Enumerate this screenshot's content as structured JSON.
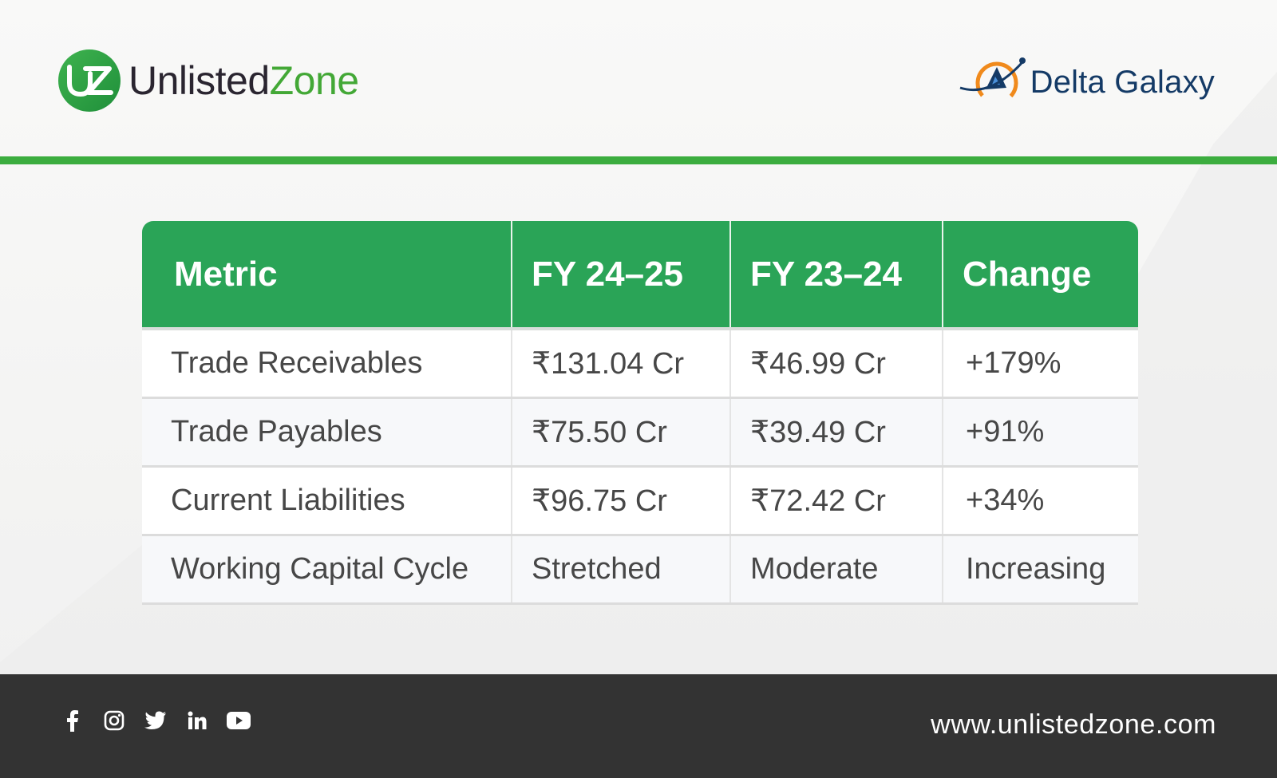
{
  "header": {
    "brand_left": {
      "logo_initials": "UZ",
      "name_part1": "Unlisted",
      "name_part2": "Zone"
    },
    "brand_right": {
      "name": "Delta Galaxy"
    }
  },
  "table": {
    "columns": [
      "Metric",
      "FY 24–25",
      "FY 23–24",
      "Change"
    ],
    "rows": [
      {
        "metric": "Trade Receivables",
        "fy2425": "₹131.04 Cr",
        "fy2324": "₹46.99 Cr",
        "change": "+179%"
      },
      {
        "metric": "Trade Payables",
        "fy2425": "₹75.50 Cr",
        "fy2324": "₹39.49 Cr",
        "change": "+91%"
      },
      {
        "metric": "Current Liabilities",
        "fy2425": "₹96.75 Cr",
        "fy2324": "₹72.42 Cr",
        "change": "+34%"
      },
      {
        "metric": "Working Capital Cycle",
        "fy2425": "Stretched",
        "fy2324": "Moderate",
        "change": "Increasing"
      }
    ]
  },
  "footer": {
    "social_icons": [
      "facebook-icon",
      "instagram-icon",
      "twitter-icon",
      "linkedin-icon",
      "youtube-icon"
    ],
    "website": "www.unlistedzone.com"
  },
  "colors": {
    "brand_green": "#3cad3f",
    "table_header_green": "#2aa457",
    "brand_dark": "#2a2530",
    "delta_blue": "#143a66",
    "delta_orange": "#f08a1c",
    "footer_bg": "#333333"
  }
}
